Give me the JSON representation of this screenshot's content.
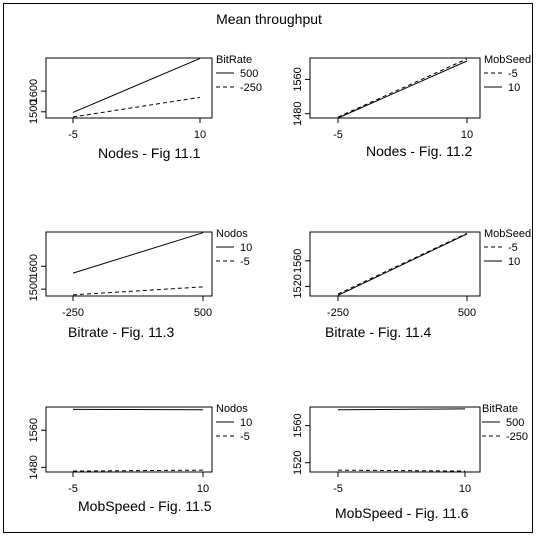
{
  "page": {
    "title": "Mean throughput"
  },
  "chart_data": [
    {
      "type": "line",
      "xlabel": "Nodes - Fig 11.1",
      "x": [
        -5,
        10
      ],
      "x_ticks": [
        "-5",
        "10"
      ],
      "y_ticks": [
        1500,
        1600
      ],
      "ylim": [
        1470,
        1760
      ],
      "legend": {
        "title": "BitRate",
        "position": "top-right"
      },
      "series": [
        {
          "name": "500",
          "style": "solid",
          "values": [
            1497,
            1758
          ]
        },
        {
          "name": "-250",
          "style": "dashed",
          "values": [
            1475,
            1570
          ]
        }
      ]
    },
    {
      "type": "line",
      "xlabel": "Nodes - Fig. 11.2",
      "x": [
        -5,
        10
      ],
      "x_ticks": [
        "-5",
        "10"
      ],
      "y_ticks": [
        1480,
        1560
      ],
      "ylim": [
        1470,
        1610
      ],
      "legend": {
        "title": "MobSeed",
        "position": "top-right"
      },
      "series": [
        {
          "name": "-5",
          "style": "dashed",
          "values": [
            1472,
            1608
          ]
        },
        {
          "name": "10",
          "style": "solid",
          "values": [
            1470,
            1603
          ]
        }
      ]
    },
    {
      "type": "line",
      "xlabel": "Bitrate - Fig. 11.3",
      "x": [
        -250,
        500
      ],
      "x_ticks": [
        "-250",
        "500"
      ],
      "y_ticks": [
        1500,
        1600
      ],
      "ylim": [
        1470,
        1750
      ],
      "legend": {
        "title": "Nodos",
        "position": "top-right"
      },
      "series": [
        {
          "name": "10",
          "style": "solid",
          "values": [
            1570,
            1747
          ]
        },
        {
          "name": "-5",
          "style": "dashed",
          "values": [
            1475,
            1510
          ]
        }
      ]
    },
    {
      "type": "line",
      "xlabel": "Bitrate - Fig. 11.4",
      "x": [
        -250,
        500
      ],
      "x_ticks": [
        "-250",
        "500"
      ],
      "y_ticks": [
        1520,
        1560
      ],
      "ylim": [
        1505,
        1605
      ],
      "legend": {
        "title": "MobSeed",
        "position": "top-right"
      },
      "series": [
        {
          "name": "-5",
          "style": "dashed",
          "values": [
            1508,
            1603
          ]
        },
        {
          "name": "10",
          "style": "solid",
          "values": [
            1506,
            1602
          ]
        }
      ]
    },
    {
      "type": "line",
      "xlabel": "MobSpeed - Fig. 11.5",
      "x": [
        -5,
        10
      ],
      "x_ticks": [
        "-5",
        "10"
      ],
      "y_ticks": [
        1480,
        1560
      ],
      "ylim": [
        1470,
        1610
      ],
      "legend": {
        "title": "Nodos",
        "position": "top-right"
      },
      "series": [
        {
          "name": "10",
          "style": "solid",
          "values": [
            1605,
            1604
          ]
        },
        {
          "name": "-5",
          "style": "dashed",
          "values": [
            1472,
            1474
          ]
        }
      ]
    },
    {
      "type": "line",
      "xlabel": "MobSpeed - Fig. 11.6",
      "x": [
        -5,
        10
      ],
      "x_ticks": [
        "-5",
        "10"
      ],
      "y_ticks": [
        1520,
        1560
      ],
      "ylim": [
        1510,
        1580
      ],
      "legend": {
        "title": "BitRate",
        "position": "top-right"
      },
      "series": [
        {
          "name": "500",
          "style": "solid",
          "values": [
            1577,
            1578
          ]
        },
        {
          "name": "-250",
          "style": "dashed",
          "values": [
            1512,
            1511
          ]
        }
      ]
    }
  ]
}
